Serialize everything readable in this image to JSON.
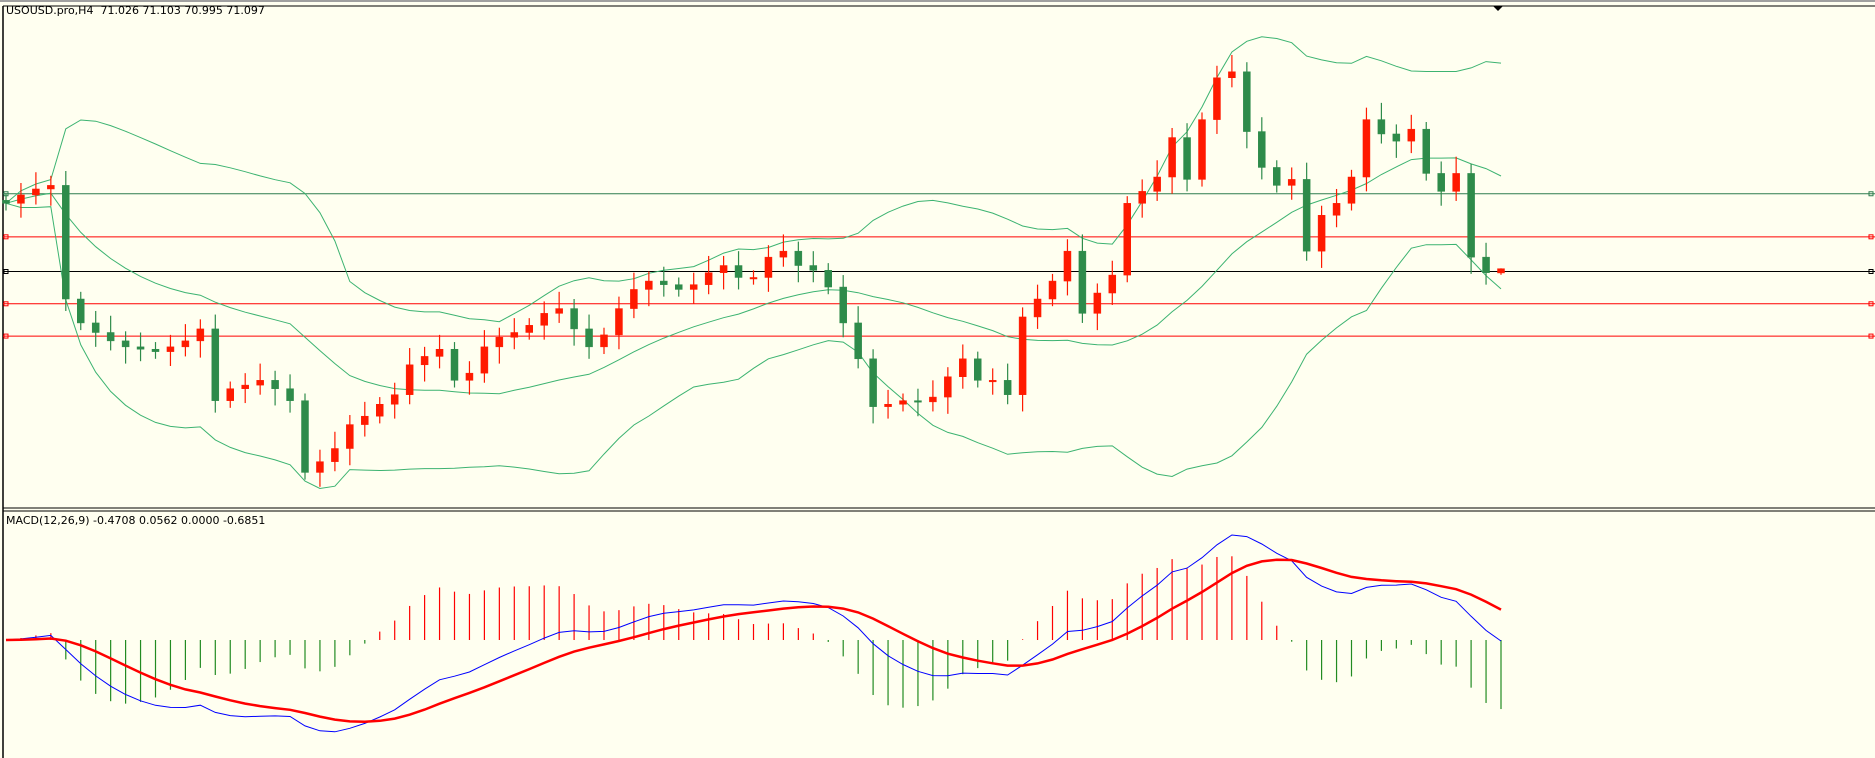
{
  "chart_data": {
    "type": "candlestick",
    "symbol_label": "USOUSD.pro,H4",
    "ohlc_label": "71.026 71.103 70.995 71.097",
    "last_bar": {
      "open": 71.026,
      "high": 71.103,
      "low": 70.995,
      "close": 71.097
    },
    "closes": [
      72.19,
      72.33,
      72.43,
      72.49,
      70.59,
      70.19,
      70.03,
      69.89,
      69.79,
      69.75,
      69.71,
      69.79,
      69.89,
      70.09,
      68.89,
      69.09,
      69.15,
      69.23,
      69.09,
      68.89,
      67.69,
      67.87,
      68.09,
      68.49,
      68.63,
      68.83,
      68.99,
      69.49,
      69.63,
      69.75,
      69.23,
      69.35,
      69.79,
      69.95,
      70.03,
      70.15,
      70.35,
      70.43,
      70.09,
      69.79,
      69.99,
      70.43,
      70.75,
      70.89,
      70.83,
      70.75,
      70.83,
      71.03,
      71.15,
      70.95,
      70.95,
      71.29,
      71.39,
      71.15,
      71.07,
      70.79,
      70.19,
      69.59,
      68.79,
      68.83,
      68.89,
      68.87,
      68.95,
      69.29,
      69.59,
      69.23,
      69.23,
      68.99,
      70.29,
      70.59,
      70.89,
      71.39,
      70.35,
      70.69,
      70.99,
      72.19,
      72.39,
      72.63,
      73.29,
      72.59,
      73.59,
      74.29,
      74.39,
      73.39,
      72.79,
      72.49,
      72.59,
      71.39,
      71.99,
      72.19,
      72.63,
      73.59,
      73.35,
      73.23,
      73.43,
      72.69,
      72.39,
      72.69,
      71.29,
      71.03,
      71.097
    ],
    "indicators": {
      "bollinger": {
        "period": 20,
        "deviations": 2,
        "color": "#3cb371"
      },
      "macd": {
        "label": "MACD(12,26,9) -0.4708 0.0562 0.0000 -0.6851",
        "fast": 12,
        "slow": 26,
        "signal": 9,
        "main_color": "#0000ff",
        "signal_color": "#ff0000"
      }
    },
    "horizontal_levels": [
      {
        "price": 72.35,
        "color": "#2e7d4f"
      },
      {
        "price": 71.63,
        "color": "#ff0000"
      },
      {
        "price": 71.05,
        "color": "#000000"
      },
      {
        "price": 70.51,
        "color": "#ff0000"
      },
      {
        "price": 69.97,
        "color": "#ff0000"
      }
    ],
    "colors": {
      "bull": "#ff1a00",
      "bear": "#2e8b4a",
      "background": "#fffff0"
    }
  }
}
